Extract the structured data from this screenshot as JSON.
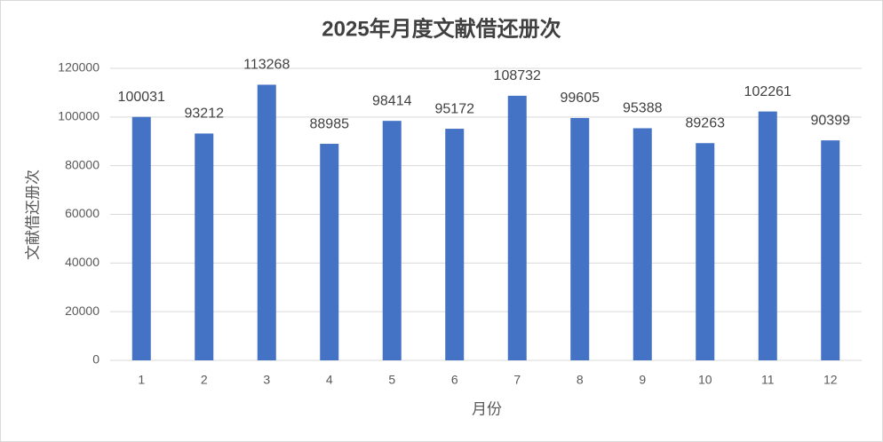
{
  "chart_data": {
    "type": "bar",
    "title": "2025年月度文献借还册次",
    "x_label": "月份",
    "y_label": "文献借还册次",
    "categories": [
      "1",
      "2",
      "3",
      "4",
      "5",
      "6",
      "7",
      "8",
      "9",
      "10",
      "11",
      "12"
    ],
    "values": [
      100031,
      93212,
      113268,
      88985,
      98414,
      95172,
      108732,
      99605,
      95388,
      89263,
      102261,
      90399
    ],
    "color": "#4472c4",
    "ylim": [
      0,
      120000
    ],
    "yticks": [
      0,
      20000,
      40000,
      60000,
      80000,
      100000,
      120000
    ],
    "grid": true
  }
}
